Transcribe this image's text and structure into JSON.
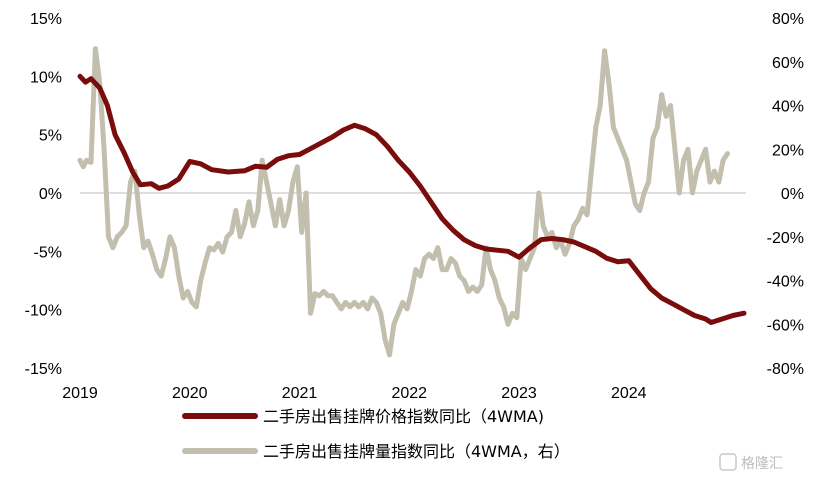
{
  "chart_data": {
    "type": "line",
    "title": "",
    "xlabel": "",
    "ylabel": "",
    "x_ticks": [
      "2019",
      "2020",
      "2021",
      "2022",
      "2023",
      "2024"
    ],
    "x_range": [
      2019.0,
      2025.05
    ],
    "y_left": {
      "range": [
        -15,
        15
      ],
      "ticks": [
        "15%",
        "10%",
        "5%",
        "0%",
        "-5%",
        "-10%",
        "-15%"
      ],
      "tick_values": [
        15,
        10,
        5,
        0,
        -5,
        -10,
        -15
      ]
    },
    "y_right": {
      "range": [
        -80,
        80
      ],
      "ticks": [
        "80%",
        "60%",
        "40%",
        "20%",
        "0%",
        "-20%",
        "-40%",
        "-60%",
        "-80%"
      ],
      "tick_values": [
        80,
        60,
        40,
        20,
        0,
        -20,
        -40,
        -60,
        -80
      ]
    },
    "zero_line": true,
    "legend_position": "bottom",
    "series": [
      {
        "name": "二手房出售挂牌价格指数同比（4WMA)",
        "axis": "left",
        "color": "#7b0c0c",
        "points": [
          [
            2019.0,
            10.0
          ],
          [
            2019.05,
            9.5
          ],
          [
            2019.1,
            9.8
          ],
          [
            2019.18,
            9.0
          ],
          [
            2019.25,
            7.5
          ],
          [
            2019.32,
            5.0
          ],
          [
            2019.4,
            3.5
          ],
          [
            2019.48,
            1.8
          ],
          [
            2019.55,
            0.7
          ],
          [
            2019.65,
            0.8
          ],
          [
            2019.72,
            0.4
          ],
          [
            2019.8,
            0.6
          ],
          [
            2019.9,
            1.2
          ],
          [
            2020.0,
            2.7
          ],
          [
            2020.1,
            2.5
          ],
          [
            2020.2,
            2.0
          ],
          [
            2020.35,
            1.8
          ],
          [
            2020.5,
            1.9
          ],
          [
            2020.6,
            2.3
          ],
          [
            2020.7,
            2.2
          ],
          [
            2020.8,
            2.9
          ],
          [
            2020.9,
            3.2
          ],
          [
            2021.0,
            3.3
          ],
          [
            2021.1,
            3.8
          ],
          [
            2021.2,
            4.3
          ],
          [
            2021.3,
            4.8
          ],
          [
            2021.4,
            5.4
          ],
          [
            2021.5,
            5.8
          ],
          [
            2021.6,
            5.5
          ],
          [
            2021.7,
            5.0
          ],
          [
            2021.8,
            4.0
          ],
          [
            2021.9,
            2.8
          ],
          [
            2022.0,
            1.8
          ],
          [
            2022.1,
            0.6
          ],
          [
            2022.2,
            -0.8
          ],
          [
            2022.3,
            -2.2
          ],
          [
            2022.4,
            -3.2
          ],
          [
            2022.5,
            -4.0
          ],
          [
            2022.6,
            -4.5
          ],
          [
            2022.7,
            -4.8
          ],
          [
            2022.8,
            -4.9
          ],
          [
            2022.9,
            -5.0
          ],
          [
            2023.0,
            -5.5
          ],
          [
            2023.1,
            -4.7
          ],
          [
            2023.2,
            -4.0
          ],
          [
            2023.3,
            -3.9
          ],
          [
            2023.4,
            -4.0
          ],
          [
            2023.5,
            -4.2
          ],
          [
            2023.6,
            -4.6
          ],
          [
            2023.7,
            -5.0
          ],
          [
            2023.8,
            -5.6
          ],
          [
            2023.9,
            -5.9
          ],
          [
            2024.0,
            -5.8
          ],
          [
            2024.1,
            -7.0
          ],
          [
            2024.2,
            -8.2
          ],
          [
            2024.3,
            -9.0
          ],
          [
            2024.4,
            -9.5
          ],
          [
            2024.5,
            -10.0
          ],
          [
            2024.6,
            -10.5
          ],
          [
            2024.7,
            -10.8
          ],
          [
            2024.75,
            -11.1
          ],
          [
            2024.85,
            -10.8
          ],
          [
            2024.95,
            -10.5
          ],
          [
            2025.05,
            -10.3
          ]
        ]
      },
      {
        "name": "二手房出售挂牌量指数同比（4WMA，右）",
        "axis": "right",
        "color": "#c2bfae",
        "points": [
          [
            2019.0,
            15
          ],
          [
            2019.03,
            12
          ],
          [
            2019.06,
            15
          ],
          [
            2019.1,
            14
          ],
          [
            2019.14,
            66
          ],
          [
            2019.18,
            50
          ],
          [
            2019.22,
            20
          ],
          [
            2019.26,
            -20
          ],
          [
            2019.3,
            -25
          ],
          [
            2019.34,
            -20
          ],
          [
            2019.38,
            -18
          ],
          [
            2019.42,
            -15
          ],
          [
            2019.46,
            5
          ],
          [
            2019.5,
            10
          ],
          [
            2019.54,
            -10
          ],
          [
            2019.58,
            -25
          ],
          [
            2019.62,
            -22
          ],
          [
            2019.66,
            -28
          ],
          [
            2019.7,
            -35
          ],
          [
            2019.74,
            -38
          ],
          [
            2019.78,
            -30
          ],
          [
            2019.82,
            -20
          ],
          [
            2019.86,
            -25
          ],
          [
            2019.9,
            -38
          ],
          [
            2019.94,
            -48
          ],
          [
            2019.98,
            -45
          ],
          [
            2020.02,
            -50
          ],
          [
            2020.06,
            -52
          ],
          [
            2020.1,
            -40
          ],
          [
            2020.14,
            -32
          ],
          [
            2020.18,
            -25
          ],
          [
            2020.22,
            -26
          ],
          [
            2020.26,
            -23
          ],
          [
            2020.3,
            -27
          ],
          [
            2020.34,
            -20
          ],
          [
            2020.38,
            -18
          ],
          [
            2020.42,
            -8
          ],
          [
            2020.46,
            -20
          ],
          [
            2020.5,
            -14
          ],
          [
            2020.54,
            -4
          ],
          [
            2020.58,
            -15
          ],
          [
            2020.62,
            -8
          ],
          [
            2020.66,
            15
          ],
          [
            2020.7,
            5
          ],
          [
            2020.74,
            -5
          ],
          [
            2020.78,
            -15
          ],
          [
            2020.82,
            -3
          ],
          [
            2020.86,
            -15
          ],
          [
            2020.9,
            -8
          ],
          [
            2020.94,
            5
          ],
          [
            2020.98,
            12
          ],
          [
            2021.02,
            -18
          ],
          [
            2021.06,
            0
          ],
          [
            2021.1,
            -55
          ],
          [
            2021.14,
            -46
          ],
          [
            2021.18,
            -47
          ],
          [
            2021.22,
            -45
          ],
          [
            2021.26,
            -47
          ],
          [
            2021.3,
            -47
          ],
          [
            2021.34,
            -50
          ],
          [
            2021.38,
            -53
          ],
          [
            2021.42,
            -50
          ],
          [
            2021.46,
            -52
          ],
          [
            2021.5,
            -50
          ],
          [
            2021.54,
            -52
          ],
          [
            2021.58,
            -50
          ],
          [
            2021.62,
            -53
          ],
          [
            2021.66,
            -48
          ],
          [
            2021.7,
            -50
          ],
          [
            2021.74,
            -55
          ],
          [
            2021.78,
            -67
          ],
          [
            2021.82,
            -74
          ],
          [
            2021.86,
            -60
          ],
          [
            2021.9,
            -55
          ],
          [
            2021.94,
            -50
          ],
          [
            2021.98,
            -53
          ],
          [
            2022.02,
            -45
          ],
          [
            2022.06,
            -35
          ],
          [
            2022.1,
            -38
          ],
          [
            2022.14,
            -30
          ],
          [
            2022.18,
            -28
          ],
          [
            2022.22,
            -30
          ],
          [
            2022.26,
            -25
          ],
          [
            2022.3,
            -35
          ],
          [
            2022.34,
            -35
          ],
          [
            2022.38,
            -30
          ],
          [
            2022.42,
            -32
          ],
          [
            2022.46,
            -38
          ],
          [
            2022.5,
            -40
          ],
          [
            2022.54,
            -45
          ],
          [
            2022.58,
            -43
          ],
          [
            2022.62,
            -45
          ],
          [
            2022.66,
            -42
          ],
          [
            2022.7,
            -25
          ],
          [
            2022.74,
            -35
          ],
          [
            2022.78,
            -40
          ],
          [
            2022.82,
            -48
          ],
          [
            2022.86,
            -52
          ],
          [
            2022.9,
            -60
          ],
          [
            2022.94,
            -55
          ],
          [
            2022.98,
            -57
          ],
          [
            2023.02,
            -30
          ],
          [
            2023.06,
            -35
          ],
          [
            2023.1,
            -30
          ],
          [
            2023.14,
            -25
          ],
          [
            2023.18,
            0
          ],
          [
            2023.22,
            -15
          ],
          [
            2023.26,
            -20
          ],
          [
            2023.3,
            -18
          ],
          [
            2023.34,
            -25
          ],
          [
            2023.38,
            -22
          ],
          [
            2023.42,
            -28
          ],
          [
            2023.46,
            -23
          ],
          [
            2023.5,
            -15
          ],
          [
            2023.54,
            -12
          ],
          [
            2023.58,
            -7
          ],
          [
            2023.62,
            -10
          ],
          [
            2023.66,
            10
          ],
          [
            2023.7,
            30
          ],
          [
            2023.74,
            40
          ],
          [
            2023.78,
            65
          ],
          [
            2023.82,
            50
          ],
          [
            2023.86,
            30
          ],
          [
            2023.9,
            25
          ],
          [
            2023.94,
            20
          ],
          [
            2023.98,
            15
          ],
          [
            2024.02,
            5
          ],
          [
            2024.06,
            -5
          ],
          [
            2024.1,
            -8
          ],
          [
            2024.14,
            0
          ],
          [
            2024.18,
            5
          ],
          [
            2024.22,
            25
          ],
          [
            2024.26,
            30
          ],
          [
            2024.3,
            45
          ],
          [
            2024.34,
            35
          ],
          [
            2024.38,
            40
          ],
          [
            2024.42,
            20
          ],
          [
            2024.46,
            0
          ],
          [
            2024.5,
            15
          ],
          [
            2024.54,
            20
          ],
          [
            2024.58,
            0
          ],
          [
            2024.62,
            10
          ],
          [
            2024.66,
            15
          ],
          [
            2024.7,
            20
          ],
          [
            2024.74,
            5
          ],
          [
            2024.78,
            10
          ],
          [
            2024.82,
            5
          ],
          [
            2024.86,
            15
          ],
          [
            2024.9,
            18
          ]
        ]
      }
    ]
  },
  "legend": [
    {
      "label": "二手房出售挂牌价格指数同比（4WMA)",
      "color": "#7b0c0c"
    },
    {
      "label": "二手房出售挂牌量指数同比（4WMA，右）",
      "color": "#c2bfae"
    }
  ],
  "watermark": {
    "text": "格隆汇"
  }
}
